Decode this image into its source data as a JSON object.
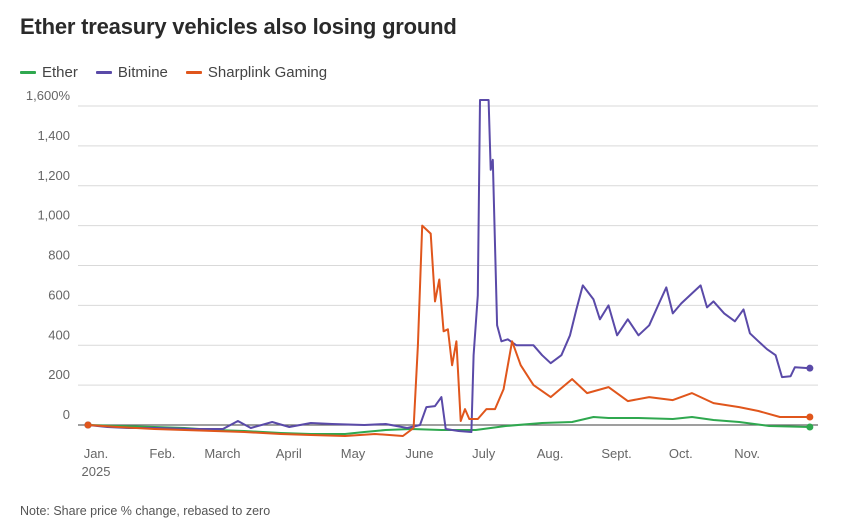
{
  "title": "Ether treasury vehicles also losing ground",
  "note": "Note: Share price % change, rebased to zero",
  "legend": [
    {
      "label": "Ether",
      "color": "#2fa84f"
    },
    {
      "label": "Bitmine",
      "color": "#5a4aa8"
    },
    {
      "label": "Sharplink Gaming",
      "color": "#e0561c"
    }
  ],
  "chart_data": {
    "type": "line",
    "title": "Ether treasury vehicles also losing ground",
    "xlabel": "",
    "ylabel": "",
    "ylim": [
      -80,
      1640
    ],
    "grid": true,
    "legend_position": "top-left",
    "y_ticks": [
      {
        "value": 1600,
        "label": "1,600%"
      },
      {
        "value": 1400,
        "label": "1,400"
      },
      {
        "value": 1200,
        "label": "1,200"
      },
      {
        "value": 1000,
        "label": "1,000"
      },
      {
        "value": 800,
        "label": "800"
      },
      {
        "value": 600,
        "label": "600"
      },
      {
        "value": 400,
        "label": "400"
      },
      {
        "value": 200,
        "label": "200"
      },
      {
        "value": 0,
        "label": "0"
      }
    ],
    "x_ticks": [
      {
        "date": "2025-01-01",
        "label": "Jan.",
        "sublabel": "2025"
      },
      {
        "date": "2025-02-01",
        "label": "Feb."
      },
      {
        "date": "2025-03-01",
        "label": "March"
      },
      {
        "date": "2025-04-01",
        "label": "April"
      },
      {
        "date": "2025-05-01",
        "label": "May"
      },
      {
        "date": "2025-06-01",
        "label": "June"
      },
      {
        "date": "2025-07-01",
        "label": "July"
      },
      {
        "date": "2025-08-01",
        "label": "Aug."
      },
      {
        "date": "2025-09-01",
        "label": "Sept."
      },
      {
        "date": "2025-10-01",
        "label": "Oct."
      },
      {
        "date": "2025-11-01",
        "label": "Nov."
      }
    ],
    "x_range": [
      "2025-01-01",
      "2025-12-05"
    ],
    "series": [
      {
        "name": "Ether",
        "color": "#2fa84f",
        "points": [
          [
            "2025-01-01",
            0
          ],
          [
            "2025-01-15",
            -5
          ],
          [
            "2025-02-01",
            -10
          ],
          [
            "2025-02-15",
            -15
          ],
          [
            "2025-03-01",
            -25
          ],
          [
            "2025-03-15",
            -30
          ],
          [
            "2025-04-01",
            -40
          ],
          [
            "2025-04-15",
            -45
          ],
          [
            "2025-05-01",
            -45
          ],
          [
            "2025-05-10",
            -35
          ],
          [
            "2025-05-20",
            -25
          ],
          [
            "2025-06-01",
            -20
          ],
          [
            "2025-06-15",
            -25
          ],
          [
            "2025-07-01",
            -25
          ],
          [
            "2025-07-15",
            -5
          ],
          [
            "2025-08-01",
            10
          ],
          [
            "2025-08-15",
            15
          ],
          [
            "2025-08-25",
            40
          ],
          [
            "2025-09-01",
            35
          ],
          [
            "2025-09-15",
            35
          ],
          [
            "2025-10-01",
            30
          ],
          [
            "2025-10-10",
            40
          ],
          [
            "2025-10-20",
            25
          ],
          [
            "2025-11-01",
            15
          ],
          [
            "2025-11-15",
            -5
          ],
          [
            "2025-12-04",
            -10
          ]
        ]
      },
      {
        "name": "Bitmine",
        "color": "#5a4aa8",
        "points": [
          [
            "2025-01-01",
            0
          ],
          [
            "2025-01-10",
            -10
          ],
          [
            "2025-01-20",
            -15
          ],
          [
            "2025-02-01",
            -15
          ],
          [
            "2025-02-20",
            -20
          ],
          [
            "2025-03-05",
            -20
          ],
          [
            "2025-03-12",
            20
          ],
          [
            "2025-03-18",
            -15
          ],
          [
            "2025-03-28",
            15
          ],
          [
            "2025-04-05",
            -10
          ],
          [
            "2025-04-15",
            10
          ],
          [
            "2025-04-25",
            5
          ],
          [
            "2025-05-10",
            0
          ],
          [
            "2025-05-20",
            5
          ],
          [
            "2025-05-30",
            -15
          ],
          [
            "2025-06-05",
            0
          ],
          [
            "2025-06-08",
            90
          ],
          [
            "2025-06-12",
            95
          ],
          [
            "2025-06-15",
            140
          ],
          [
            "2025-06-17",
            -20
          ],
          [
            "2025-06-23",
            -30
          ],
          [
            "2025-06-29",
            -35
          ],
          [
            "2025-06-30",
            350
          ],
          [
            "2025-07-02",
            650
          ],
          [
            "2025-07-03",
            1630
          ],
          [
            "2025-07-07",
            1630
          ],
          [
            "2025-07-08",
            1280
          ],
          [
            "2025-07-09",
            1330
          ],
          [
            "2025-07-11",
            500
          ],
          [
            "2025-07-13",
            420
          ],
          [
            "2025-07-16",
            430
          ],
          [
            "2025-07-20",
            400
          ],
          [
            "2025-07-28",
            400
          ],
          [
            "2025-08-01",
            350
          ],
          [
            "2025-08-05",
            310
          ],
          [
            "2025-08-10",
            350
          ],
          [
            "2025-08-14",
            450
          ],
          [
            "2025-08-17",
            580
          ],
          [
            "2025-08-20",
            700
          ],
          [
            "2025-08-25",
            630
          ],
          [
            "2025-08-28",
            530
          ],
          [
            "2025-09-01",
            600
          ],
          [
            "2025-09-05",
            450
          ],
          [
            "2025-09-10",
            530
          ],
          [
            "2025-09-15",
            450
          ],
          [
            "2025-09-20",
            500
          ],
          [
            "2025-09-25",
            620
          ],
          [
            "2025-09-28",
            690
          ],
          [
            "2025-10-01",
            560
          ],
          [
            "2025-10-05",
            610
          ],
          [
            "2025-10-10",
            660
          ],
          [
            "2025-10-14",
            700
          ],
          [
            "2025-10-17",
            590
          ],
          [
            "2025-10-20",
            620
          ],
          [
            "2025-10-25",
            560
          ],
          [
            "2025-10-30",
            520
          ],
          [
            "2025-11-03",
            580
          ],
          [
            "2025-11-06",
            460
          ],
          [
            "2025-11-10",
            420
          ],
          [
            "2025-11-14",
            380
          ],
          [
            "2025-11-18",
            350
          ],
          [
            "2025-11-21",
            240
          ],
          [
            "2025-11-25",
            245
          ],
          [
            "2025-11-27",
            290
          ],
          [
            "2025-12-04",
            285
          ]
        ]
      },
      {
        "name": "Sharplink Gaming",
        "color": "#e0561c",
        "points": [
          [
            "2025-01-01",
            0
          ],
          [
            "2025-01-15",
            -10
          ],
          [
            "2025-02-01",
            -20
          ],
          [
            "2025-02-15",
            -25
          ],
          [
            "2025-03-01",
            -30
          ],
          [
            "2025-03-15",
            -35
          ],
          [
            "2025-04-01",
            -45
          ],
          [
            "2025-04-15",
            -50
          ],
          [
            "2025-05-01",
            -55
          ],
          [
            "2025-05-15",
            -45
          ],
          [
            "2025-05-28",
            -55
          ],
          [
            "2025-06-02",
            -15
          ],
          [
            "2025-06-04",
            400
          ],
          [
            "2025-06-06",
            1000
          ],
          [
            "2025-06-10",
            960
          ],
          [
            "2025-06-12",
            620
          ],
          [
            "2025-06-14",
            730
          ],
          [
            "2025-06-16",
            470
          ],
          [
            "2025-06-18",
            480
          ],
          [
            "2025-06-20",
            300
          ],
          [
            "2025-06-22",
            420
          ],
          [
            "2025-06-24",
            20
          ],
          [
            "2025-06-26",
            80
          ],
          [
            "2025-06-28",
            30
          ],
          [
            "2025-07-02",
            30
          ],
          [
            "2025-07-06",
            80
          ],
          [
            "2025-07-10",
            80
          ],
          [
            "2025-07-14",
            180
          ],
          [
            "2025-07-18",
            420
          ],
          [
            "2025-07-22",
            300
          ],
          [
            "2025-07-28",
            200
          ],
          [
            "2025-08-05",
            140
          ],
          [
            "2025-08-15",
            230
          ],
          [
            "2025-08-22",
            160
          ],
          [
            "2025-09-01",
            190
          ],
          [
            "2025-09-10",
            120
          ],
          [
            "2025-09-20",
            140
          ],
          [
            "2025-10-01",
            125
          ],
          [
            "2025-10-10",
            160
          ],
          [
            "2025-10-20",
            110
          ],
          [
            "2025-11-01",
            90
          ],
          [
            "2025-11-10",
            70
          ],
          [
            "2025-11-20",
            40
          ],
          [
            "2025-12-04",
            40
          ]
        ]
      }
    ]
  }
}
